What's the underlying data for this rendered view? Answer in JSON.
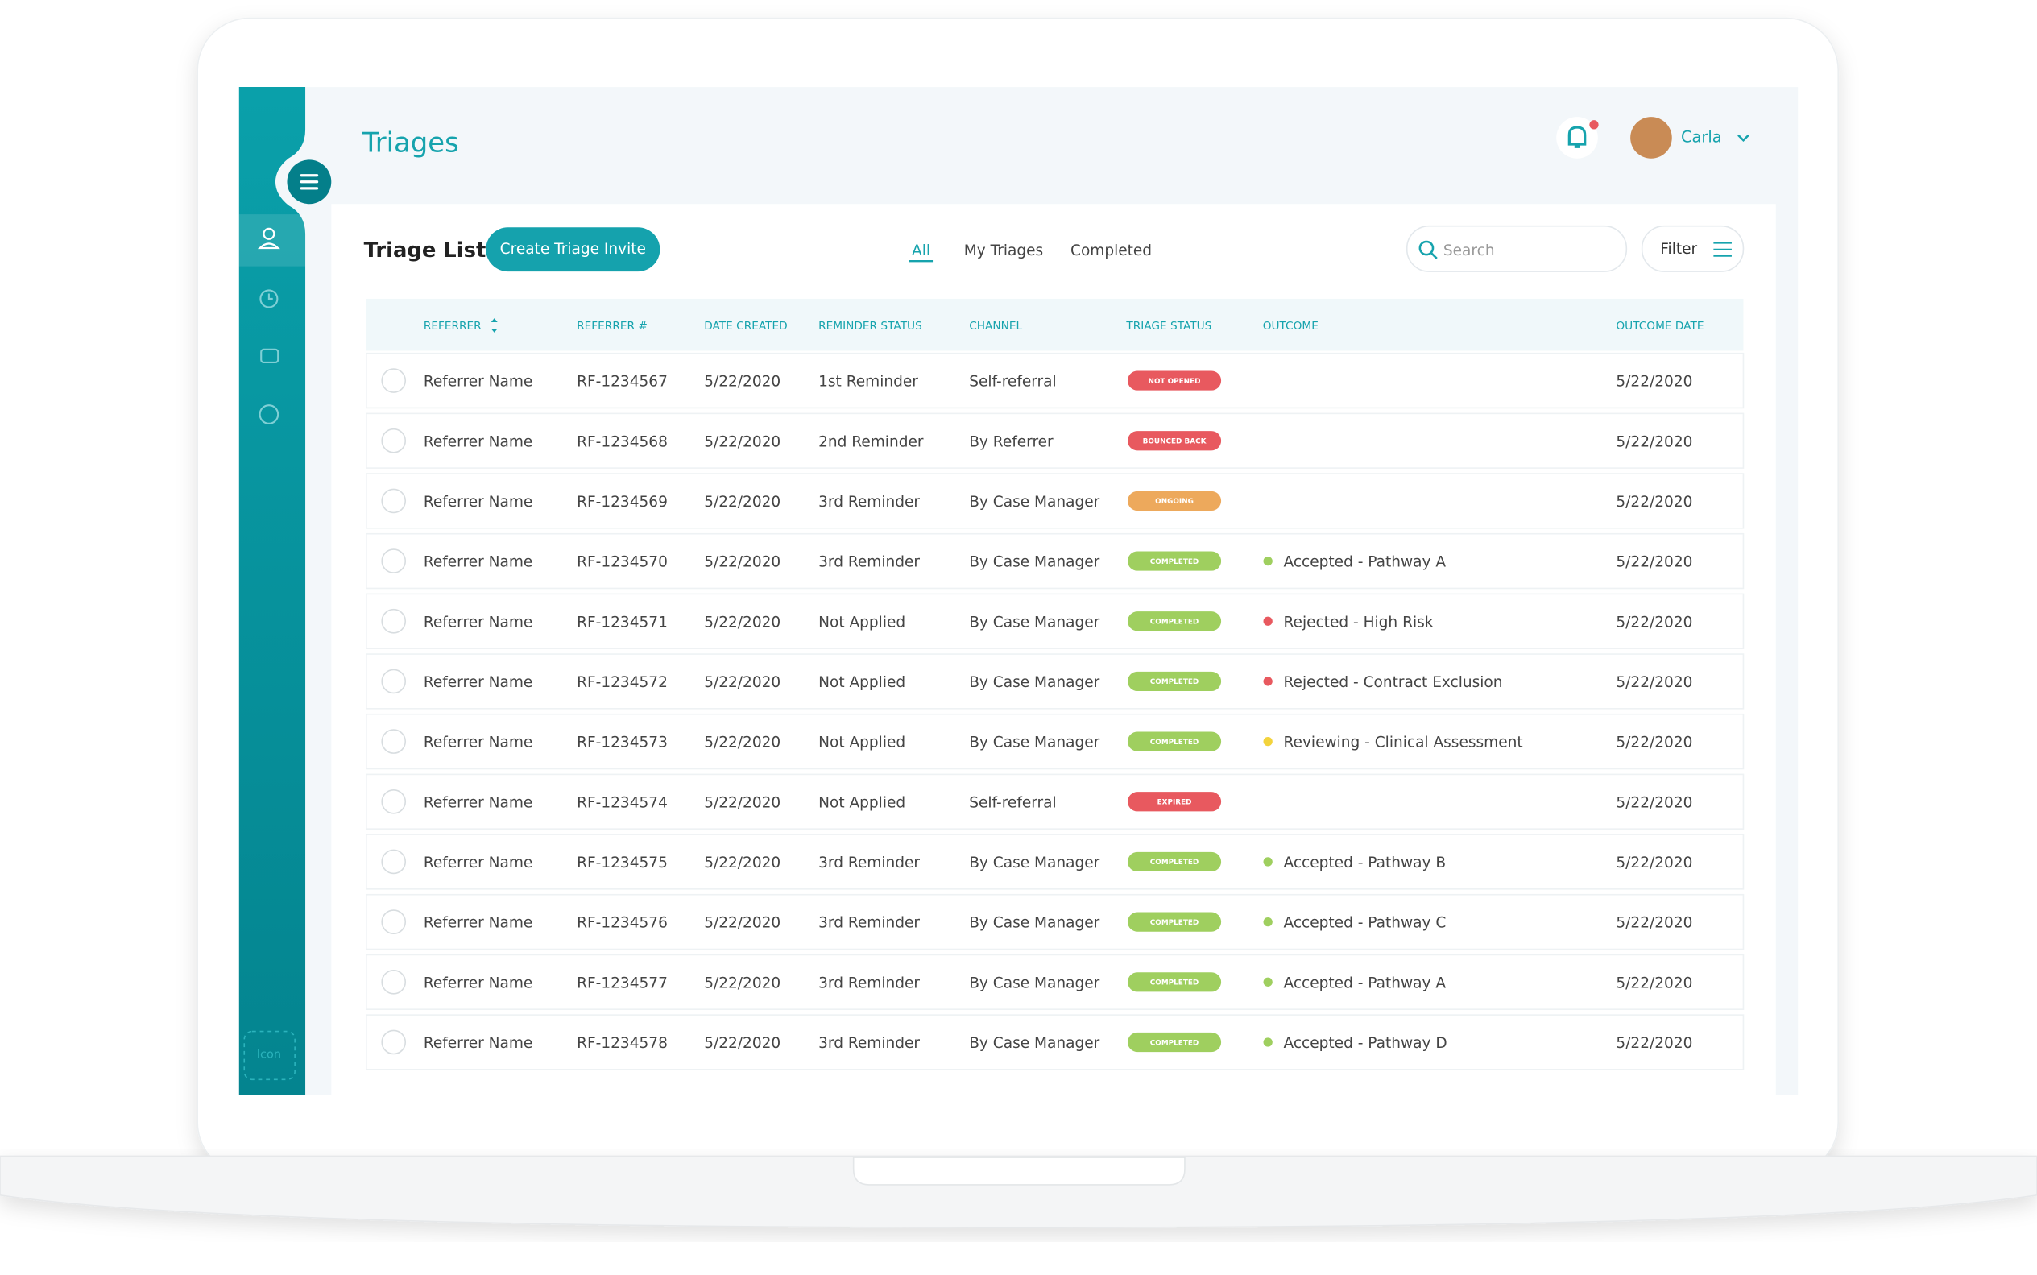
{
  "header": {
    "title": "Triages",
    "user": "Carla"
  },
  "list": {
    "title": "Triage List",
    "button": "Create Triage Invite",
    "tabs": [
      "All",
      "My Triages",
      "Completed"
    ],
    "search": "Search",
    "filter": "Filter",
    "columns": [
      "REFERRER",
      "REFERRER #",
      "DATE CREATED",
      "REMINDER STATUS",
      "CHANNEL",
      "TRIAGE STATUS",
      "OUTCOME",
      "OUTCOME DATE"
    ],
    "rows": [
      {
        "referrer": "Referrer Name",
        "ref": "RF-1234567",
        "created": "5/22/2020",
        "reminder": "1st Reminder",
        "channel": "Self-referral",
        "status": "NOT OPENED",
        "status_color": "#e8595f",
        "outcome": null,
        "outcome_color": null,
        "outcome_date": "5/22/2020"
      },
      {
        "referrer": "Referrer Name",
        "ref": "RF-1234568",
        "created": "5/22/2020",
        "reminder": "2nd Reminder",
        "channel": "By Referrer",
        "status": "BOUNCED BACK",
        "status_color": "#e8595f",
        "outcome": null,
        "outcome_color": null,
        "outcome_date": "5/22/2020"
      },
      {
        "referrer": "Referrer Name",
        "ref": "RF-1234569",
        "created": "5/22/2020",
        "reminder": "3rd Reminder",
        "channel": "By Case Manager",
        "status": "ONGOING",
        "status_color": "#eda95c",
        "outcome": null,
        "outcome_color": null,
        "outcome_date": "5/22/2020"
      },
      {
        "referrer": "Referrer Name",
        "ref": "RF-1234570",
        "created": "5/22/2020",
        "reminder": "3rd Reminder",
        "channel": "By Case Manager",
        "status": "COMPLETED",
        "status_color": "#9fcf5f",
        "outcome": "Accepted - Pathway A",
        "outcome_color": "#9fcf5f",
        "outcome_date": "5/22/2020"
      },
      {
        "referrer": "Referrer Name",
        "ref": "RF-1234571",
        "created": "5/22/2020",
        "reminder": "Not Applied",
        "channel": "By Case Manager",
        "status": "COMPLETED",
        "status_color": "#9fcf5f",
        "outcome": "Rejected - High Risk",
        "outcome_color": "#e8595f",
        "outcome_date": "5/22/2020"
      },
      {
        "referrer": "Referrer Name",
        "ref": "RF-1234572",
        "created": "5/22/2020",
        "reminder": "Not Applied",
        "channel": "By Case Manager",
        "status": "COMPLETED",
        "status_color": "#9fcf5f",
        "outcome": "Rejected - Contract Exclusion",
        "outcome_color": "#e8595f",
        "outcome_date": "5/22/2020"
      },
      {
        "referrer": "Referrer Name",
        "ref": "RF-1234573",
        "created": "5/22/2020",
        "reminder": "Not Applied",
        "channel": "By Case Manager",
        "status": "COMPLETED",
        "status_color": "#9fcf5f",
        "outcome": "Reviewing - Clinical Assessment",
        "outcome_color": "#f3d33c",
        "outcome_date": "5/22/2020"
      },
      {
        "referrer": "Referrer Name",
        "ref": "RF-1234574",
        "created": "5/22/2020",
        "reminder": "Not Applied",
        "channel": "Self-referral",
        "status": "EXPIRED",
        "status_color": "#e8595f",
        "outcome": null,
        "outcome_color": null,
        "outcome_date": "5/22/2020"
      },
      {
        "referrer": "Referrer Name",
        "ref": "RF-1234575",
        "created": "5/22/2020",
        "reminder": "3rd Reminder",
        "channel": "By Case Manager",
        "status": "COMPLETED",
        "status_color": "#9fcf5f",
        "outcome": "Accepted - Pathway B",
        "outcome_color": "#9fcf5f",
        "outcome_date": "5/22/2020"
      },
      {
        "referrer": "Referrer Name",
        "ref": "RF-1234576",
        "created": "5/22/2020",
        "reminder": "3rd Reminder",
        "channel": "By Case Manager",
        "status": "COMPLETED",
        "status_color": "#9fcf5f",
        "outcome": "Accepted - Pathway C",
        "outcome_color": "#9fcf5f",
        "outcome_date": "5/22/2020"
      },
      {
        "referrer": "Referrer Name",
        "ref": "RF-1234577",
        "created": "5/22/2020",
        "reminder": "3rd Reminder",
        "channel": "By Case Manager",
        "status": "COMPLETED",
        "status_color": "#9fcf5f",
        "outcome": "Accepted - Pathway A",
        "outcome_color": "#9fcf5f",
        "outcome_date": "5/22/2020"
      },
      {
        "referrer": "Referrer Name",
        "ref": "RF-1234578",
        "created": "5/22/2020",
        "reminder": "3rd Reminder",
        "channel": "By Case Manager",
        "status": "COMPLETED",
        "status_color": "#9fcf5f",
        "outcome": "Accepted - Pathway D",
        "outcome_color": "#9fcf5f",
        "outcome_date": "5/22/2020"
      }
    ]
  },
  "sidebar": {
    "placeholder": "Icon"
  }
}
